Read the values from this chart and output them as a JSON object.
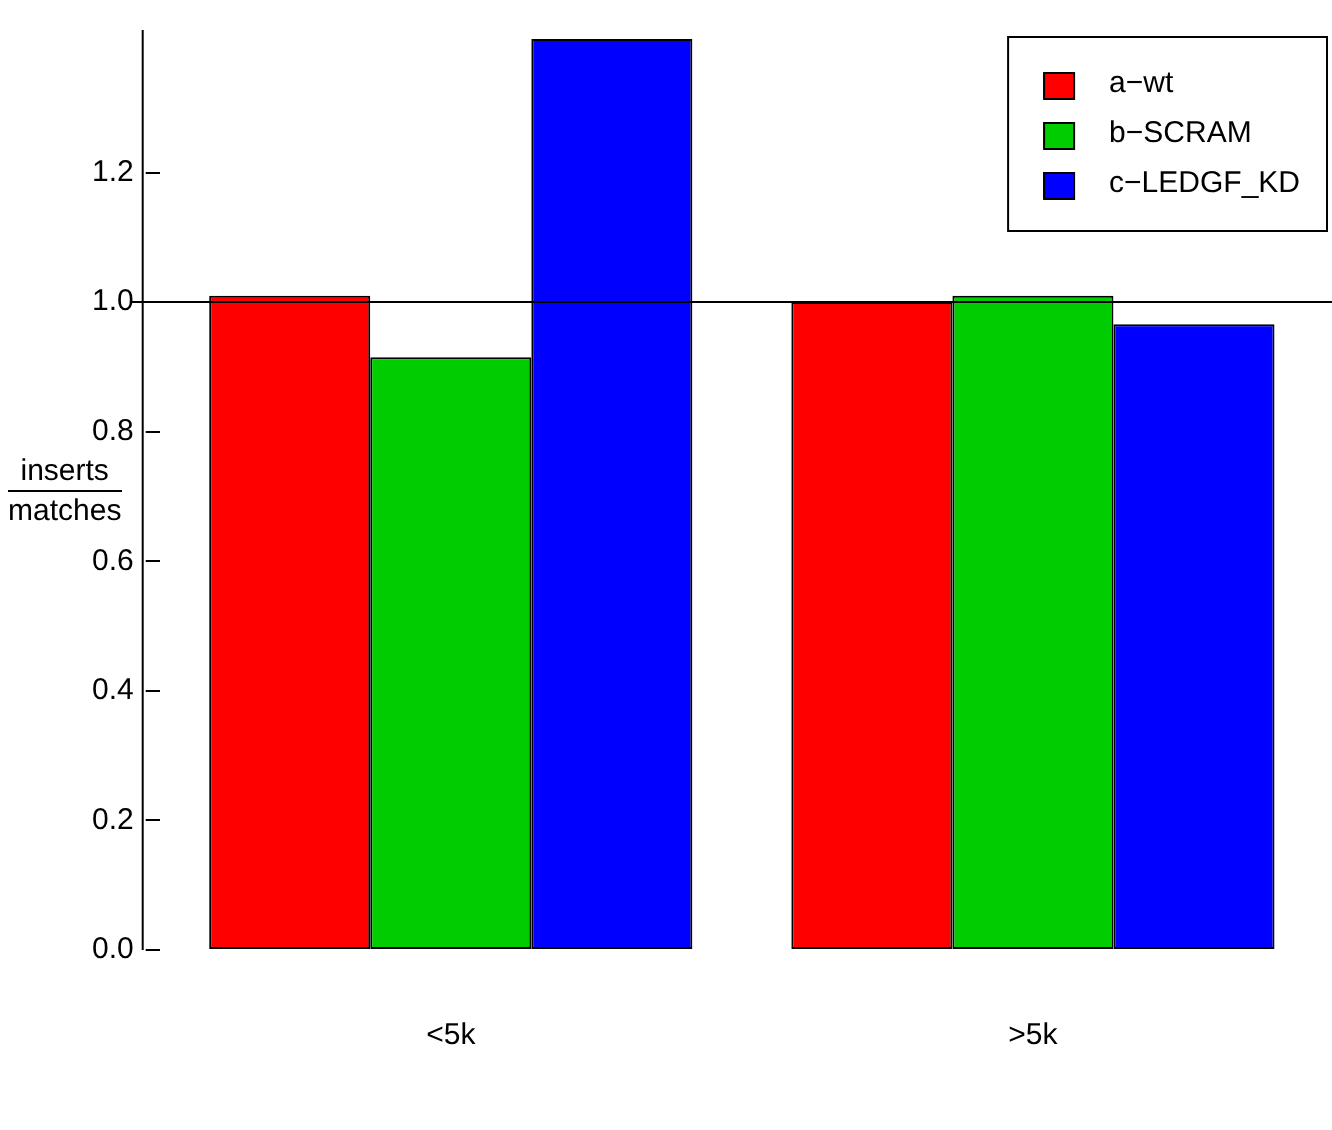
{
  "chart_data": {
    "type": "bar",
    "ylabel": "inserts\nmatches",
    "categories": [
      "<5k",
      ">5k"
    ],
    "series": [
      {
        "name": "a−wt",
        "color": "#ff0000",
        "values": [
          1.01,
          1.0
        ]
      },
      {
        "name": "b−SCRAM",
        "color": "#00cd00",
        "values": [
          0.915,
          1.01
        ]
      },
      {
        "name": "c−LEDGF_KD",
        "color": "#0000ff",
        "values": [
          1.406,
          0.966
        ]
      }
    ],
    "ylim": [
      0,
      1.42
    ],
    "yticks": [
      {
        "value": 0,
        "label": "0.0"
      },
      {
        "value": 0.2,
        "label": "0.2"
      },
      {
        "value": 0.4,
        "label": "0.4"
      },
      {
        "value": 0.6,
        "label": "0.6"
      },
      {
        "value": 0.8,
        "label": "0.8"
      },
      {
        "value": 1,
        "label": "1.0"
      },
      {
        "value": 1.2,
        "label": "1.2"
      }
    ],
    "ref_lines": [
      {
        "axis": "y",
        "value": 1
      }
    ],
    "grid": false,
    "legend": "top right"
  }
}
